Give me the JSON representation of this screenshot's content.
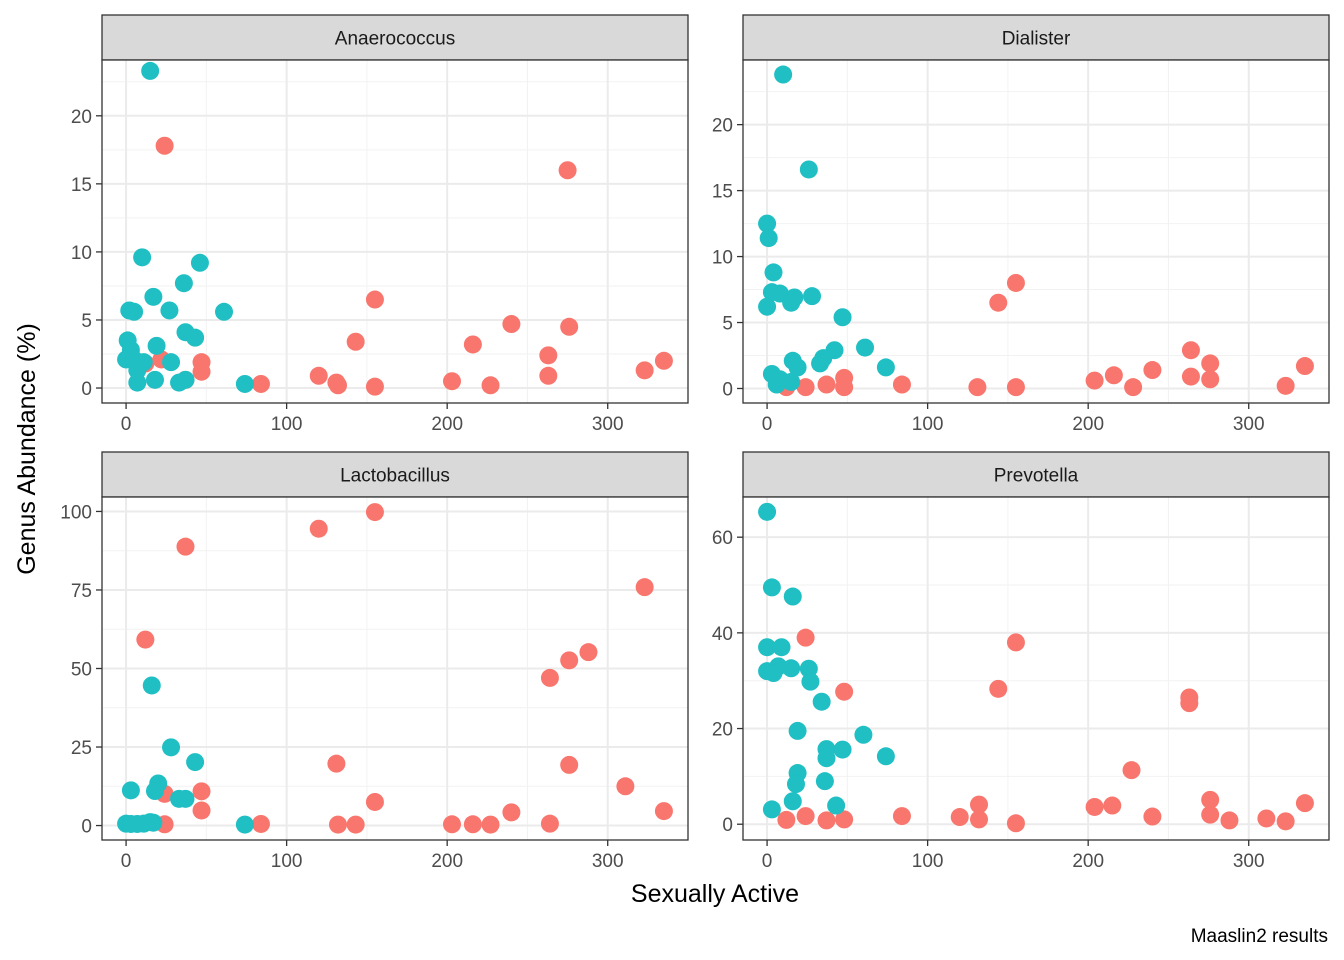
{
  "colors": {
    "series_a": "#F8766D",
    "series_b": "#1FBFC4",
    "strip_fill": "#D9D9D9",
    "grid_major": "#EBEBEB",
    "panel_border": "#333333"
  },
  "figure": {
    "xlabel": "Sexually Active",
    "ylabel": "Genus Abundance (%)",
    "caption": "Maaslin2 results"
  },
  "chart_data": [
    {
      "type": "scatter",
      "title": "Anaerococcus",
      "xlim": [
        -15,
        350
      ],
      "ylim": [
        -1.1,
        24.1
      ],
      "xticks": [
        0,
        100,
        200,
        300
      ],
      "yticks": [
        0,
        5,
        10,
        15,
        20
      ],
      "grid": true,
      "series": [
        {
          "color": "#F8766D",
          "points": [
            [
              24,
              17.8
            ],
            [
              275,
              16.0
            ],
            [
              155,
              6.5
            ],
            [
              240,
              4.7
            ],
            [
              276,
              4.5
            ],
            [
              143,
              3.4
            ],
            [
              216,
              3.2
            ],
            [
              263,
              2.4
            ],
            [
              47,
              1.9
            ],
            [
              335,
              2.0
            ],
            [
              22,
              2.1
            ],
            [
              12,
              1.8
            ],
            [
              47,
              1.2
            ],
            [
              323,
              1.3
            ],
            [
              120,
              0.9
            ],
            [
              263,
              0.9
            ],
            [
              37,
              0.6
            ],
            [
              131,
              0.4
            ],
            [
              203,
              0.5
            ],
            [
              84,
              0.3
            ],
            [
              132,
              0.2
            ],
            [
              227,
              0.2
            ],
            [
              155,
              0.1
            ]
          ]
        },
        {
          "color": "#1FBFC4",
          "points": [
            [
              15,
              23.3
            ],
            [
              10,
              9.6
            ],
            [
              46,
              9.2
            ],
            [
              36,
              7.7
            ],
            [
              17,
              6.7
            ],
            [
              27,
              5.7
            ],
            [
              61,
              5.6
            ],
            [
              2,
              5.7
            ],
            [
              5,
              5.6
            ],
            [
              37,
              4.1
            ],
            [
              43,
              3.7
            ],
            [
              1,
              3.5
            ],
            [
              19,
              3.1
            ],
            [
              3,
              2.8
            ],
            [
              0,
              2.1
            ],
            [
              5,
              2.1
            ],
            [
              11,
              1.9
            ],
            [
              28,
              1.9
            ],
            [
              7,
              1.3
            ],
            [
              37,
              0.6
            ],
            [
              33,
              0.4
            ],
            [
              18,
              0.6
            ],
            [
              7,
              0.4
            ],
            [
              74,
              0.3
            ]
          ]
        }
      ]
    },
    {
      "type": "scatter",
      "title": "Dialister",
      "xlim": [
        -15,
        350
      ],
      "ylim": [
        -1.1,
        24.9
      ],
      "xticks": [
        0,
        100,
        200,
        300
      ],
      "yticks": [
        0,
        5,
        10,
        15,
        20
      ],
      "grid": true,
      "series": [
        {
          "color": "#F8766D",
          "points": [
            [
              155,
              8.0
            ],
            [
              144,
              6.5
            ],
            [
              264,
              2.9
            ],
            [
              276,
              1.9
            ],
            [
              335,
              1.7
            ],
            [
              240,
              1.4
            ],
            [
              216,
              1.0
            ],
            [
              204,
              0.6
            ],
            [
              264,
              0.9
            ],
            [
              276,
              0.7
            ],
            [
              48,
              0.8
            ],
            [
              37,
              0.3
            ],
            [
              84,
              0.3
            ],
            [
              131,
              0.1
            ],
            [
              155,
              0.1
            ],
            [
              228,
              0.1
            ],
            [
              323,
              0.2
            ],
            [
              12,
              0.1
            ],
            [
              24,
              0.1
            ],
            [
              48,
              0.1
            ]
          ]
        },
        {
          "color": "#1FBFC4",
          "points": [
            [
              10,
              23.8
            ],
            [
              26,
              16.6
            ],
            [
              0,
              12.5
            ],
            [
              1,
              11.4
            ],
            [
              4,
              8.8
            ],
            [
              3,
              7.3
            ],
            [
              8,
              7.2
            ],
            [
              17,
              6.9
            ],
            [
              28,
              7.0
            ],
            [
              15,
              6.5
            ],
            [
              0,
              6.2
            ],
            [
              47,
              5.4
            ],
            [
              61,
              3.1
            ],
            [
              42,
              2.9
            ],
            [
              35,
              2.3
            ],
            [
              33,
              1.9
            ],
            [
              16,
              2.1
            ],
            [
              19,
              1.6
            ],
            [
              74,
              1.6
            ],
            [
              3,
              1.1
            ],
            [
              8,
              0.7
            ],
            [
              6,
              0.3
            ],
            [
              15,
              0.5
            ]
          ]
        }
      ]
    },
    {
      "type": "scatter",
      "title": "Lactobacillus",
      "xlim": [
        -15,
        350
      ],
      "ylim": [
        -4.6,
        104.6
      ],
      "xticks": [
        0,
        100,
        200,
        300
      ],
      "yticks": [
        0,
        25,
        50,
        75,
        100
      ],
      "grid": true,
      "series": [
        {
          "color": "#F8766D",
          "points": [
            [
              155,
              99.8
            ],
            [
              120,
              94.5
            ],
            [
              37,
              88.8
            ],
            [
              323,
              75.9
            ],
            [
              12,
              59.2
            ],
            [
              288,
              55.2
            ],
            [
              276,
              52.6
            ],
            [
              264,
              47.0
            ],
            [
              131,
              19.7
            ],
            [
              276,
              19.3
            ],
            [
              311,
              12.5
            ],
            [
              47,
              10.9
            ],
            [
              24,
              10.1
            ],
            [
              155,
              7.5
            ],
            [
              47,
              4.8
            ],
            [
              240,
              4.2
            ],
            [
              335,
              4.6
            ],
            [
              84,
              0.5
            ],
            [
              132,
              0.3
            ],
            [
              143,
              0.3
            ],
            [
              203,
              0.4
            ],
            [
              216,
              0.4
            ],
            [
              227,
              0.3
            ],
            [
              264,
              0.6
            ],
            [
              24,
              0.4
            ]
          ]
        },
        {
          "color": "#1FBFC4",
          "points": [
            [
              16,
              44.6
            ],
            [
              28,
              24.9
            ],
            [
              43,
              20.2
            ],
            [
              20,
              13.4
            ],
            [
              3,
              11.2
            ],
            [
              18,
              11.0
            ],
            [
              33,
              8.5
            ],
            [
              37,
              8.5
            ],
            [
              0,
              0.6
            ],
            [
              3,
              0.5
            ],
            [
              7,
              0.5
            ],
            [
              11,
              0.6
            ],
            [
              15,
              1.1
            ],
            [
              17,
              0.9
            ],
            [
              74,
              0.3
            ]
          ]
        }
      ]
    },
    {
      "type": "scatter",
      "title": "Prevotella",
      "xlim": [
        -15,
        350
      ],
      "ylim": [
        -3.3,
        68.4
      ],
      "xticks": [
        0,
        100,
        200,
        300
      ],
      "yticks": [
        0,
        20,
        40,
        60
      ],
      "grid": true,
      "series": [
        {
          "color": "#F8766D",
          "points": [
            [
              24,
              39.0
            ],
            [
              155,
              38.0
            ],
            [
              144,
              28.3
            ],
            [
              48,
              27.7
            ],
            [
              263,
              26.5
            ],
            [
              263,
              25.3
            ],
            [
              227,
              11.3
            ],
            [
              276,
              5.1
            ],
            [
              335,
              4.4
            ],
            [
              204,
              3.6
            ],
            [
              215,
              3.9
            ],
            [
              132,
              4.1
            ],
            [
              276,
              2.0
            ],
            [
              240,
              1.6
            ],
            [
              84,
              1.7
            ],
            [
              120,
              1.5
            ],
            [
              132,
              1.0
            ],
            [
              24,
              1.7
            ],
            [
              12,
              0.9
            ],
            [
              37,
              0.8
            ],
            [
              48,
              1.0
            ],
            [
              155,
              0.2
            ],
            [
              288,
              0.8
            ],
            [
              311,
              1.2
            ],
            [
              323,
              0.6
            ]
          ]
        },
        {
          "color": "#1FBFC4",
          "points": [
            [
              0,
              65.3
            ],
            [
              3,
              49.5
            ],
            [
              16,
              47.6
            ],
            [
              0,
              37.0
            ],
            [
              9,
              37.0
            ],
            [
              7,
              33.0
            ],
            [
              15,
              32.6
            ],
            [
              26,
              32.5
            ],
            [
              0,
              32.0
            ],
            [
              4,
              31.6
            ],
            [
              27,
              29.8
            ],
            [
              34,
              25.6
            ],
            [
              19,
              19.5
            ],
            [
              60,
              18.7
            ],
            [
              37,
              15.7
            ],
            [
              47,
              15.6
            ],
            [
              74,
              14.2
            ],
            [
              37,
              13.8
            ],
            [
              19,
              10.7
            ],
            [
              18,
              8.4
            ],
            [
              36,
              9.0
            ],
            [
              16,
              4.8
            ],
            [
              43,
              3.9
            ],
            [
              3,
              3.1
            ]
          ]
        }
      ]
    }
  ]
}
